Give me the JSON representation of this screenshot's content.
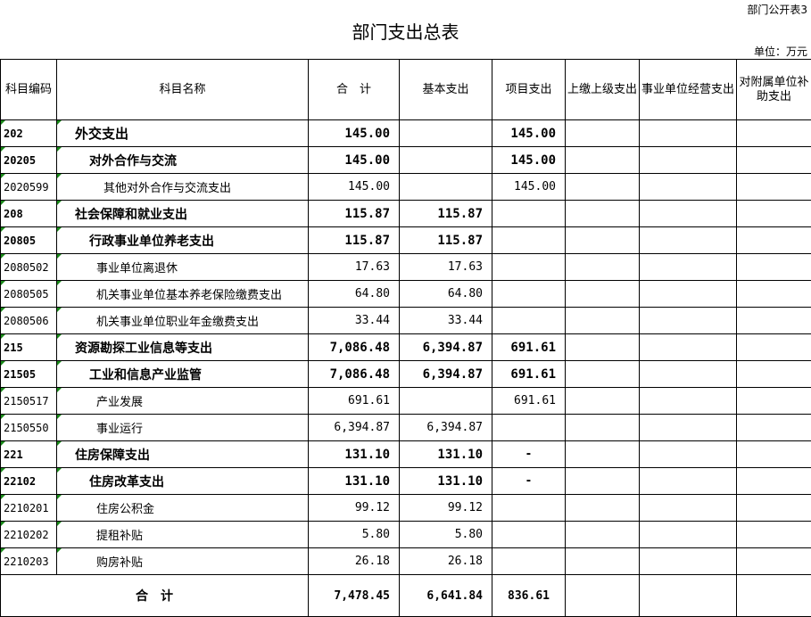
{
  "tag": "部门公开表3",
  "title": "部门支出总表",
  "unit": "单位：万元",
  "headers": [
    "科目编码",
    "科目名称",
    "合　计",
    "基本支出",
    "项目支出",
    "上缴上级支出",
    "事业单位经营支出",
    "对附属单位补助支出"
  ],
  "rows": [
    {
      "code": "202",
      "name": "外交支出",
      "level": 1,
      "total": "145.00",
      "basic": "",
      "project": "145.00"
    },
    {
      "code": "20205",
      "name": "对外合作与交流",
      "level": 2,
      "total": "145.00",
      "basic": "",
      "project": "145.00"
    },
    {
      "code": "2020599",
      "name": "其他对外合作与交流支出",
      "level": 3,
      "total": "145.00",
      "basic": "",
      "project": "145.00"
    },
    {
      "code": "208",
      "name": "社会保障和就业支出",
      "level": 1,
      "total": "115.87",
      "basic": "115.87",
      "project": ""
    },
    {
      "code": "20805",
      "name": "行政事业单位养老支出",
      "level": 2,
      "total": "115.87",
      "basic": "115.87",
      "project": ""
    },
    {
      "code": "2080502",
      "name": "事业单位离退休",
      "level": 3,
      "total": "17.63",
      "basic": "17.63",
      "project": ""
    },
    {
      "code": "2080505",
      "name": "机关事业单位基本养老保险缴费支出",
      "level": 3,
      "total": "64.80",
      "basic": "64.80",
      "project": ""
    },
    {
      "code": "2080506",
      "name": "机关事业单位职业年金缴费支出",
      "level": 3,
      "total": "33.44",
      "basic": "33.44",
      "project": ""
    },
    {
      "code": "215",
      "name": "资源勘探工业信息等支出",
      "level": 1,
      "total": "7,086.48",
      "basic": "6,394.87",
      "project": "691.61"
    },
    {
      "code": "21505",
      "name": "工业和信息产业监管",
      "level": 2,
      "total": "7,086.48",
      "basic": "6,394.87",
      "project": "691.61"
    },
    {
      "code": "2150517",
      "name": "产业发展",
      "level": 3,
      "total": "691.61",
      "basic": "",
      "project": "691.61"
    },
    {
      "code": "2150550",
      "name": "事业运行",
      "level": 3,
      "total": "6,394.87",
      "basic": "6,394.87",
      "project": ""
    },
    {
      "code": "221",
      "name": "住房保障支出",
      "level": 1,
      "total": "131.10",
      "basic": "131.10",
      "project": "-"
    },
    {
      "code": "22102",
      "name": "住房改革支出",
      "level": 2,
      "total": "131.10",
      "basic": "131.10",
      "project": "-"
    },
    {
      "code": "2210201",
      "name": "住房公积金",
      "level": 3,
      "total": "99.12",
      "basic": "99.12",
      "project": ""
    },
    {
      "code": "2210202",
      "name": "提租补贴",
      "level": 3,
      "total": "5.80",
      "basic": "5.80",
      "project": ""
    },
    {
      "code": "2210203",
      "name": "购房补贴",
      "level": 3,
      "total": "26.18",
      "basic": "26.18",
      "project": ""
    }
  ],
  "total": {
    "label": "合　计",
    "total": "7,478.45",
    "basic": "6,641.84",
    "project": "836.61"
  }
}
